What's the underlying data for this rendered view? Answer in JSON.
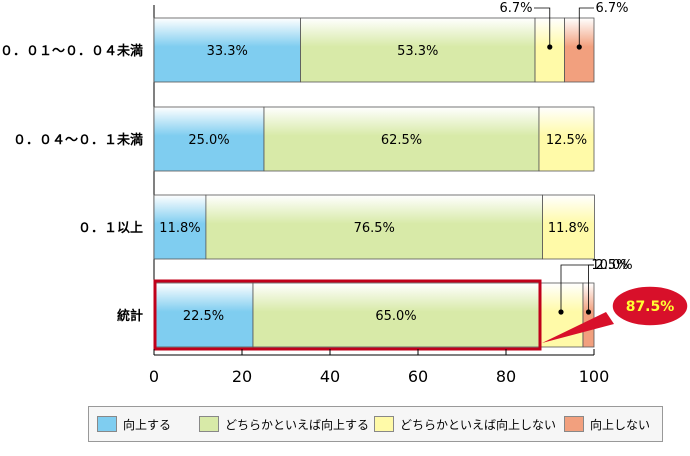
{
  "chart_data": {
    "type": "bar",
    "orientation": "horizontal",
    "stacked": true,
    "categories": [
      "０．０１～０．０４未満",
      "０．０４～０．１未満",
      "０．１以上",
      "統計"
    ],
    "series": [
      {
        "name": "向上する",
        "values": [
          33.3,
          25.0,
          11.8,
          22.5
        ],
        "color": "#7fcdf0"
      },
      {
        "name": "どちらかといえば向上する",
        "values": [
          53.3,
          62.5,
          76.5,
          65.0
        ],
        "color": "#d8eaa8"
      },
      {
        "name": "どちらかといえば向上しない",
        "values": [
          6.7,
          12.5,
          11.8,
          10.0
        ],
        "color": "#fffaa8"
      },
      {
        "name": "向上しない",
        "values": [
          6.7,
          0,
          0,
          2.5
        ],
        "color": "#f2a07e"
      }
    ],
    "value_labels": [
      [
        "33.3%",
        "53.3%",
        "6.7%",
        "6.7%"
      ],
      [
        "25.0%",
        "62.5%",
        "12.5%",
        ""
      ],
      [
        "11.8%",
        "76.5%",
        "11.8%",
        ""
      ],
      [
        "22.5%",
        "65.0%",
        "10.0%",
        "2.5%"
      ]
    ],
    "xlim": [
      0,
      100
    ],
    "xticks": [
      0,
      20,
      40,
      60,
      80,
      100
    ],
    "legend_position": "bottom",
    "highlight": {
      "category_index": 3,
      "series_indices": [
        0,
        1
      ],
      "label": "87.5%",
      "border_color": "#c0001a"
    }
  }
}
